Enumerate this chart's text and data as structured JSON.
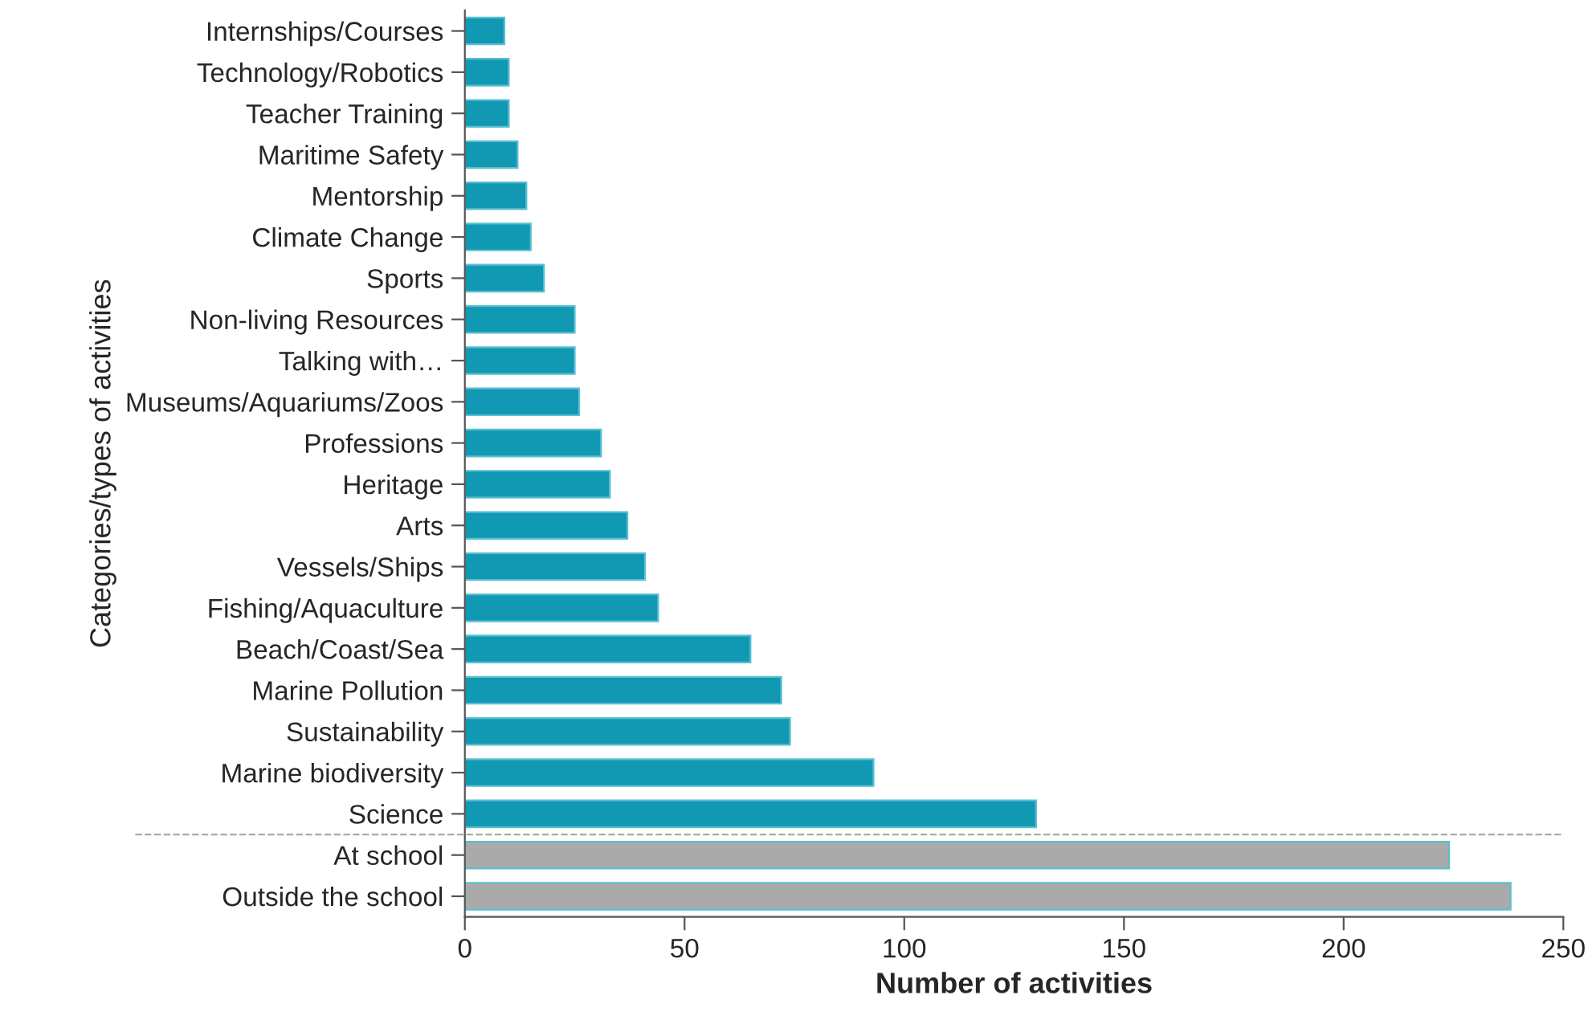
{
  "chart_data": {
    "type": "bar",
    "orientation": "horizontal",
    "xlabel": "Number of activities",
    "ylabel": "Categories/types of activities",
    "categories": [
      "Internships/Courses",
      "Technology/Robotics",
      "Teacher Training",
      "Maritime Safety",
      "Mentorship",
      "Climate Change",
      "Sports",
      "Non-living Resources",
      "Talking with…",
      "Museums/Aquariums/Zoos",
      "Professions",
      "Heritage",
      "Arts",
      "Vessels/Ships",
      "Fishing/Aquaculture",
      "Beach/Coast/Sea",
      "Marine Pollution",
      "Sustainability",
      "Marine biodiversity",
      "Science",
      "At school",
      "Outside the school"
    ],
    "values": [
      9,
      10,
      10,
      12,
      14,
      15,
      18,
      25,
      25,
      26,
      31,
      33,
      37,
      41,
      44,
      65,
      72,
      74,
      93,
      130,
      224,
      238
    ],
    "colors": [
      "#1199b4",
      "#1199b4",
      "#1199b4",
      "#1199b4",
      "#1199b4",
      "#1199b4",
      "#1199b4",
      "#1199b4",
      "#1199b4",
      "#1199b4",
      "#1199b4",
      "#1199b4",
      "#1199b4",
      "#1199b4",
      "#1199b4",
      "#1199b4",
      "#1199b4",
      "#1199b4",
      "#1199b4",
      "#1199b4",
      "#aaaaaa",
      "#aaaaaa"
    ],
    "xlim": [
      0,
      250
    ],
    "xticks": [
      0,
      50,
      100,
      150,
      200,
      250
    ],
    "grid": false
  }
}
